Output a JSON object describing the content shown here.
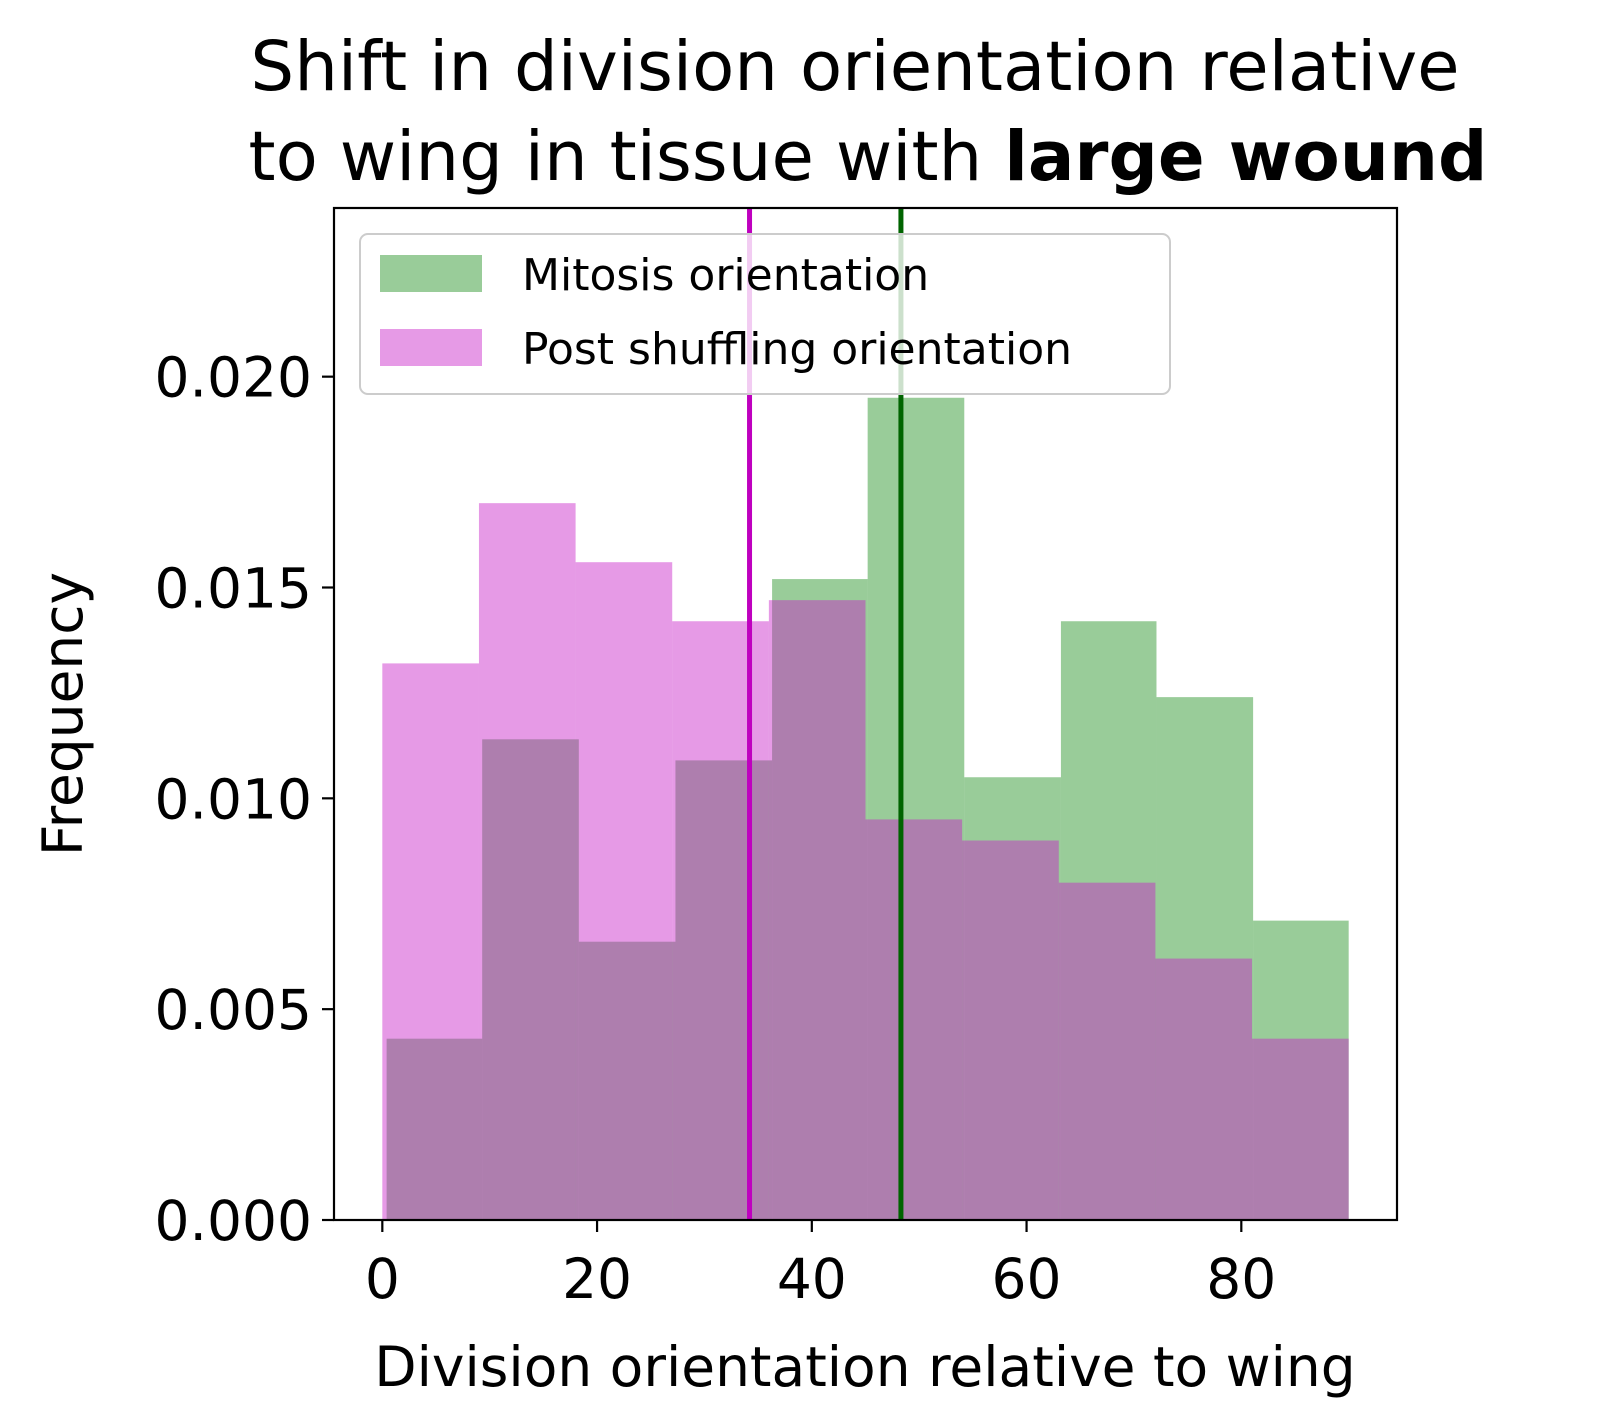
{
  "chart_data": {
    "type": "bar",
    "title": {
      "line1": "Shift in division orientation relative",
      "line2_regular": "to wing in tissue with ",
      "line2_bold": "large wound"
    },
    "xlabel": "Division orientation relative to wing",
    "ylabel": "Frequency",
    "xlim": [
      -4.5,
      94.5
    ],
    "ylim": [
      0,
      0.024
    ],
    "xticks": [
      0,
      20,
      40,
      60,
      80
    ],
    "xtick_labels": [
      "0",
      "20",
      "40",
      "60",
      "80"
    ],
    "yticks": [
      0,
      0.005,
      0.01,
      0.015,
      0.02
    ],
    "ytick_labels": [
      "0.000",
      "0.005",
      "0.010",
      "0.015",
      "0.020"
    ],
    "legend_position": "upper-left",
    "series": [
      {
        "name": "Mitosis orientation",
        "color": "#008000",
        "alpha": 0.4,
        "bin_edges": [
          0.4,
          9.3,
          18.3,
          27.3,
          36.3,
          45.2,
          54.2,
          63.2,
          72.1,
          81.1,
          90.0
        ],
        "values": [
          0.0043,
          0.0114,
          0.0066,
          0.0109,
          0.0152,
          0.0195,
          0.0105,
          0.0142,
          0.0124,
          0.0071
        ],
        "mean_line": 48.3,
        "mean_line_color": "#006400"
      },
      {
        "name": "Post shuffling orientation",
        "color": "#c71fc7",
        "alpha": 0.45,
        "bin_edges": [
          0.0,
          9.0,
          18.0,
          27.0,
          36.0,
          45.0,
          54.0,
          63.0,
          72.0,
          81.0,
          90.0
        ],
        "values": [
          0.0132,
          0.017,
          0.0156,
          0.0142,
          0.0147,
          0.0095,
          0.009,
          0.008,
          0.0062,
          0.0043
        ],
        "mean_line": 34.2,
        "mean_line_color": "#bf00bf"
      }
    ]
  }
}
